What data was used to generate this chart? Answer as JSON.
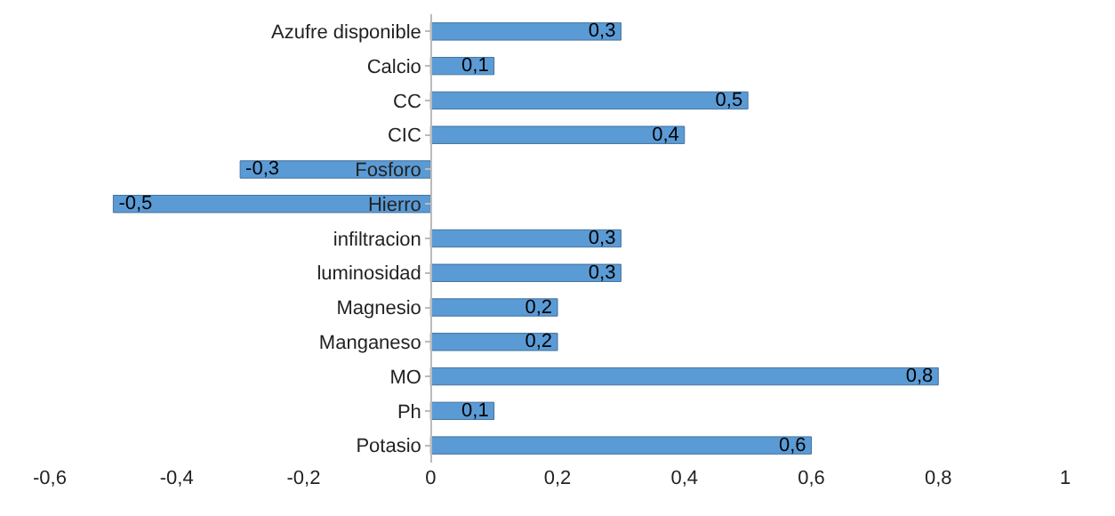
{
  "chart_data": {
    "type": "bar",
    "orientation": "horizontal",
    "categories": [
      "Azufre disponible",
      "Calcio",
      "CC",
      "CIC",
      "Fosforo",
      "Hierro",
      "infiltracion",
      "luminosidad",
      "Magnesio",
      "Manganeso",
      "MO",
      "Ph",
      "Potasio"
    ],
    "values": [
      0.3,
      0.1,
      0.5,
      0.4,
      -0.3,
      -0.5,
      0.3,
      0.3,
      0.2,
      0.2,
      0.8,
      0.1,
      0.6
    ],
    "value_labels": [
      "0,3",
      "0,1",
      "0,5",
      "0,4",
      "-0,3",
      "-0,5",
      "0,3",
      "0,3",
      "0,2",
      "0,2",
      "0,8",
      "0,1",
      "0,6"
    ],
    "color": "#5b9bd5",
    "xlim": [
      -0.6,
      1
    ],
    "xticks": [
      {
        "value": -0.6,
        "label": "-0,6"
      },
      {
        "value": -0.4,
        "label": "-0,4"
      },
      {
        "value": -0.2,
        "label": "-0,2"
      },
      {
        "value": 0,
        "label": "0"
      },
      {
        "value": 0.2,
        "label": "0,2"
      },
      {
        "value": 0.4,
        "label": "0,4"
      },
      {
        "value": 0.6,
        "label": "0,6"
      },
      {
        "value": 0.8,
        "label": "0,8"
      },
      {
        "value": 1,
        "label": "1"
      }
    ],
    "legend": false
  }
}
